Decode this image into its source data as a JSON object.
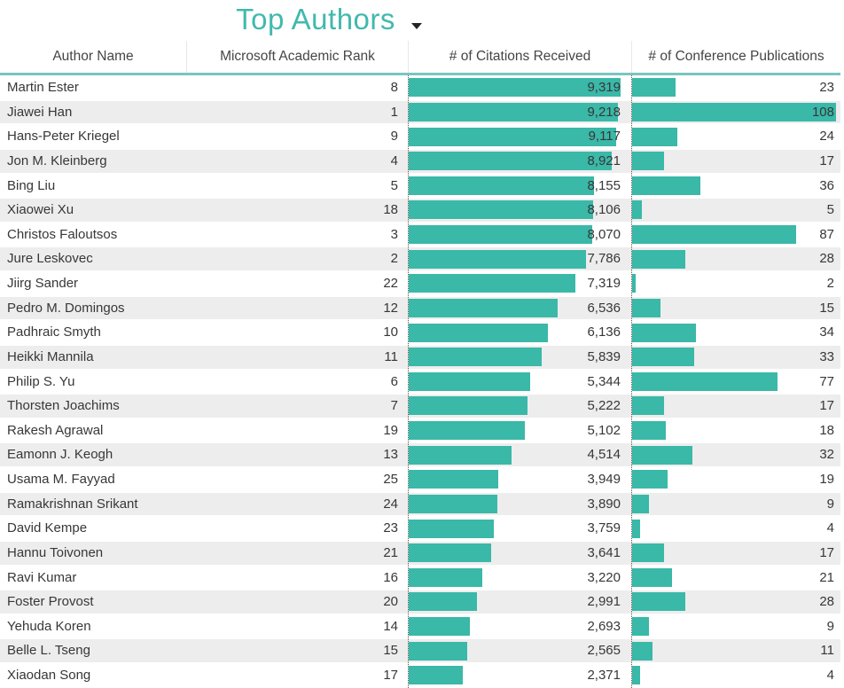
{
  "title": "Top Authors",
  "colors": {
    "bar": "#3ab8a8",
    "title": "#41b9ae",
    "header_underline": "#7ac6bf"
  },
  "columns": [
    "Author Name",
    "Microsoft Academic Rank",
    "# of Citations Received",
    "# of Conference Publications"
  ],
  "sort": {
    "column": "# of Citations Received",
    "direction": "descending"
  },
  "chart_data": {
    "type": "table",
    "title": "Top Authors",
    "columns": [
      "Author Name",
      "Microsoft Academic Rank",
      "# of Citations Received",
      "# of Conference Publications"
    ],
    "data_bar_columns": [
      "# of Citations Received",
      "# of Conference Publications"
    ],
    "rows": [
      {
        "author": "Martin Ester",
        "rank": 8,
        "citations": 9319,
        "citations_label": "9,319",
        "conference_publications": 23
      },
      {
        "author": "Jiawei Han",
        "rank": 1,
        "citations": 9218,
        "citations_label": "9,218",
        "conference_publications": 108
      },
      {
        "author": "Hans-Peter Kriegel",
        "rank": 9,
        "citations": 9117,
        "citations_label": "9,117",
        "conference_publications": 24
      },
      {
        "author": "Jon M. Kleinberg",
        "rank": 4,
        "citations": 8921,
        "citations_label": "8,921",
        "conference_publications": 17
      },
      {
        "author": "Bing Liu",
        "rank": 5,
        "citations": 8155,
        "citations_label": "8,155",
        "conference_publications": 36
      },
      {
        "author": "Xiaowei Xu",
        "rank": 18,
        "citations": 8106,
        "citations_label": "8,106",
        "conference_publications": 5
      },
      {
        "author": "Christos Faloutsos",
        "rank": 3,
        "citations": 8070,
        "citations_label": "8,070",
        "conference_publications": 87
      },
      {
        "author": "Jure Leskovec",
        "rank": 2,
        "citations": 7786,
        "citations_label": "7,786",
        "conference_publications": 28
      },
      {
        "author": "Jiirg Sander",
        "rank": 22,
        "citations": 7319,
        "citations_label": "7,319",
        "conference_publications": 2
      },
      {
        "author": "Pedro M. Domingos",
        "rank": 12,
        "citations": 6536,
        "citations_label": "6,536",
        "conference_publications": 15
      },
      {
        "author": "Padhraic Smyth",
        "rank": 10,
        "citations": 6136,
        "citations_label": "6,136",
        "conference_publications": 34
      },
      {
        "author": "Heikki Mannila",
        "rank": 11,
        "citations": 5839,
        "citations_label": "5,839",
        "conference_publications": 33
      },
      {
        "author": "Philip S. Yu",
        "rank": 6,
        "citations": 5344,
        "citations_label": "5,344",
        "conference_publications": 77
      },
      {
        "author": "Thorsten Joachims",
        "rank": 7,
        "citations": 5222,
        "citations_label": "5,222",
        "conference_publications": 17
      },
      {
        "author": "Rakesh Agrawal",
        "rank": 19,
        "citations": 5102,
        "citations_label": "5,102",
        "conference_publications": 18
      },
      {
        "author": "Eamonn J. Keogh",
        "rank": 13,
        "citations": 4514,
        "citations_label": "4,514",
        "conference_publications": 32
      },
      {
        "author": "Usama M. Fayyad",
        "rank": 25,
        "citations": 3949,
        "citations_label": "3,949",
        "conference_publications": 19
      },
      {
        "author": "Ramakrishnan Srikant",
        "rank": 24,
        "citations": 3890,
        "citations_label": "3,890",
        "conference_publications": 9
      },
      {
        "author": "David Kempe",
        "rank": 23,
        "citations": 3759,
        "citations_label": "3,759",
        "conference_publications": 4
      },
      {
        "author": "Hannu Toivonen",
        "rank": 21,
        "citations": 3641,
        "citations_label": "3,641",
        "conference_publications": 17
      },
      {
        "author": "Ravi Kumar",
        "rank": 16,
        "citations": 3220,
        "citations_label": "3,220",
        "conference_publications": 21
      },
      {
        "author": "Foster Provost",
        "rank": 20,
        "citations": 2991,
        "citations_label": "2,991",
        "conference_publications": 28
      },
      {
        "author": "Yehuda Koren",
        "rank": 14,
        "citations": 2693,
        "citations_label": "2,693",
        "conference_publications": 9
      },
      {
        "author": "Belle L. Tseng",
        "rank": 15,
        "citations": 2565,
        "citations_label": "2,565",
        "conference_publications": 11
      },
      {
        "author": "Xiaodan Song",
        "rank": 17,
        "citations": 2371,
        "citations_label": "2,371",
        "conference_publications": 4
      }
    ]
  }
}
